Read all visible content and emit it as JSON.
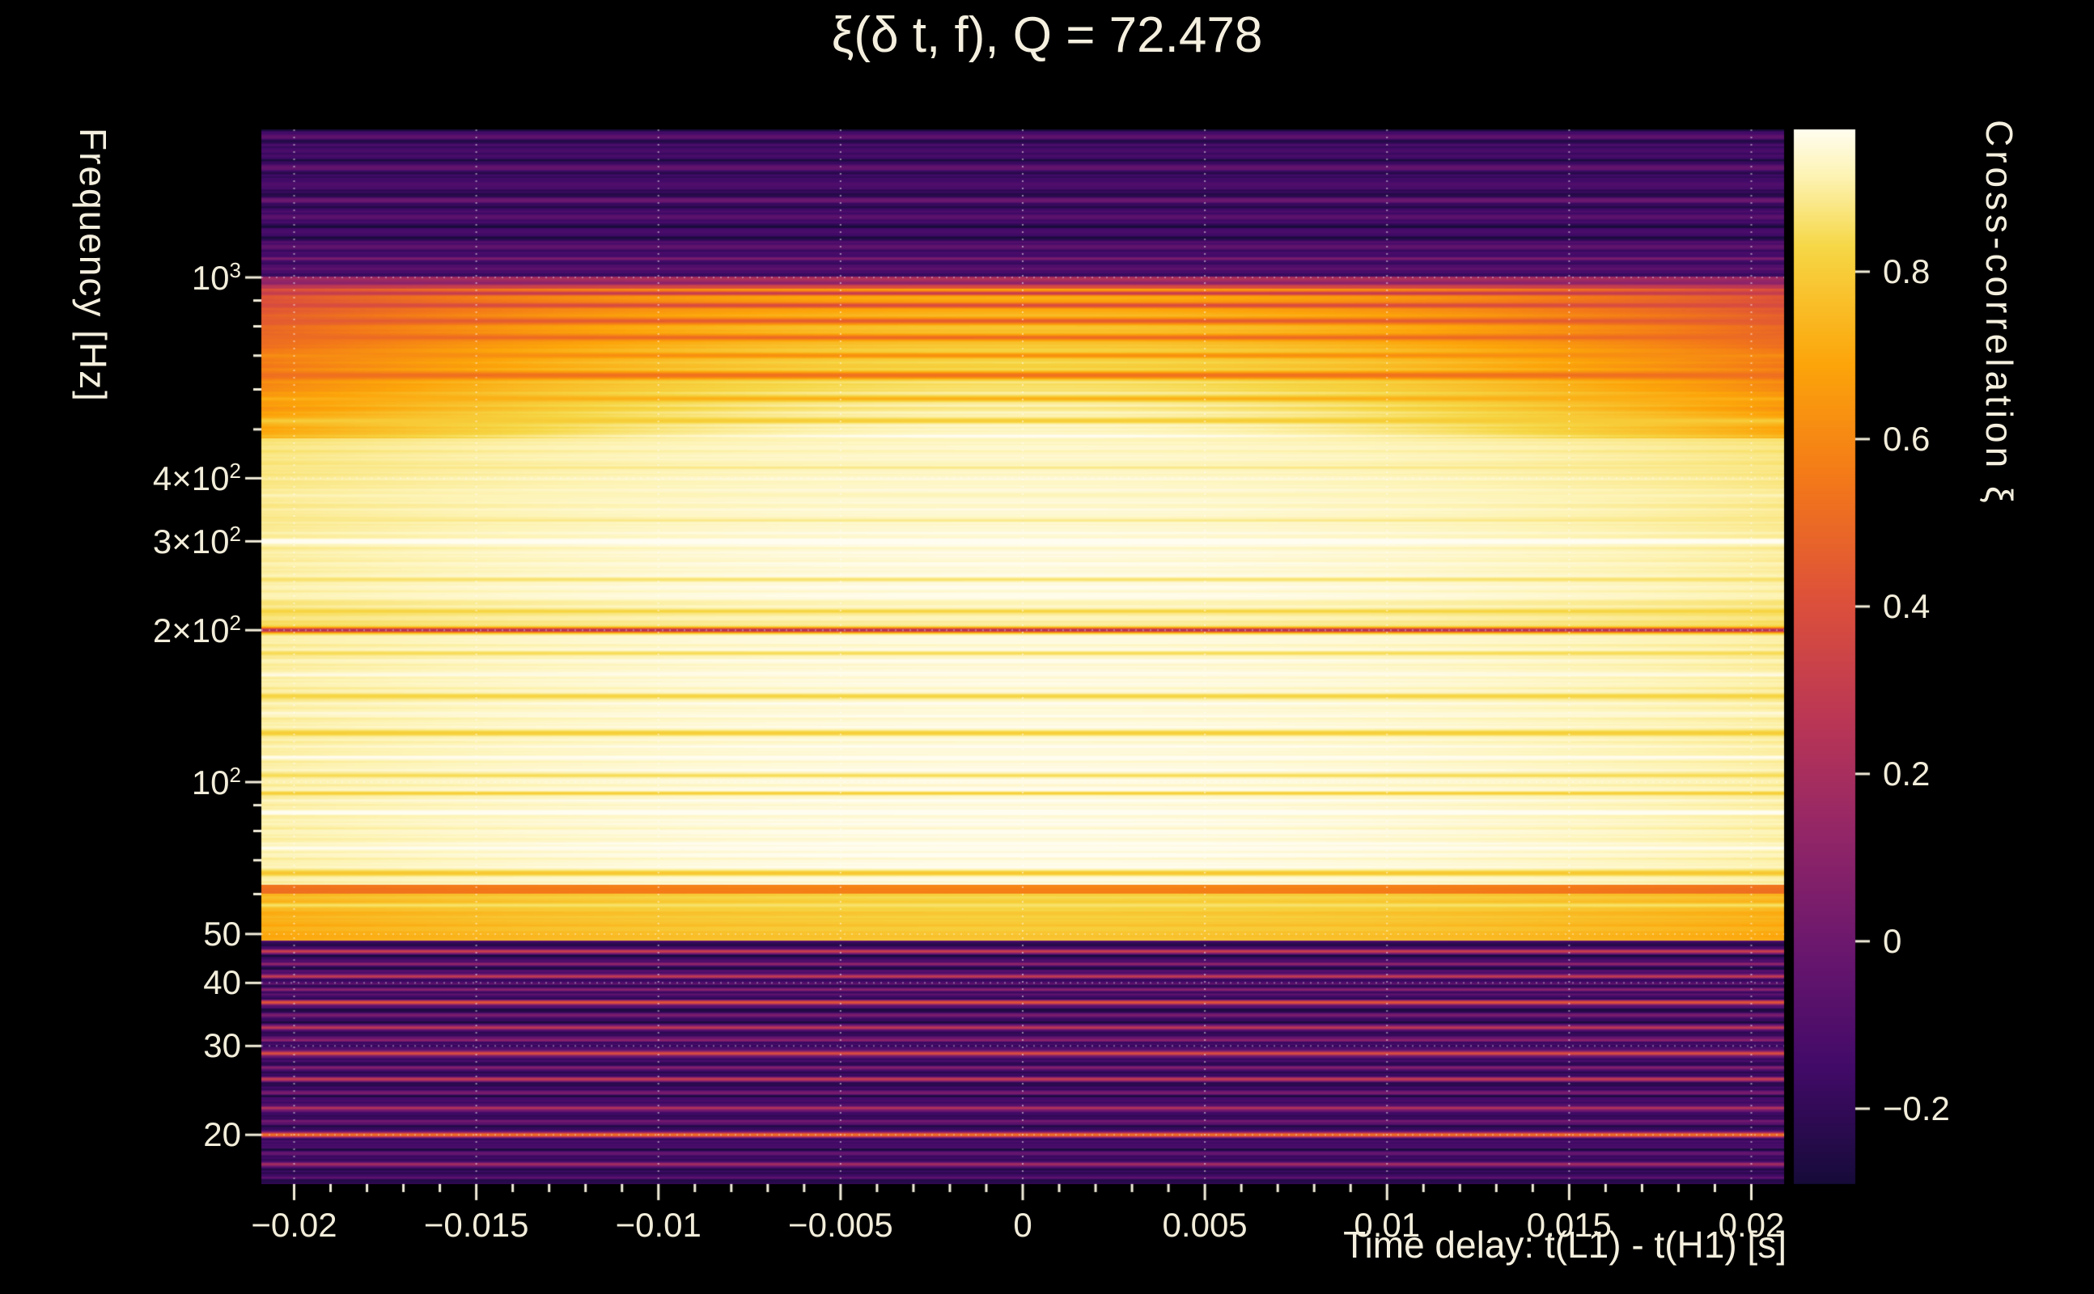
{
  "colors": {
    "background": "#000000",
    "title_text": "#f4efde",
    "tick_text": "#f2edda",
    "grid": "#ffffff"
  },
  "chart_data": {
    "type": "heatmap",
    "title": "ξ(δ t, f), Q = 72.478",
    "Q": 72.478,
    "xlabel": "Time delay: t(L1) - t(H1) [s]",
    "ylabel": "Frequency [Hz]",
    "colorbar_label": "Cross-correlation ξ",
    "x_range": [
      -0.0209,
      0.0209
    ],
    "y_scale": "log",
    "y_range_hz": [
      15.98,
      1965
    ],
    "x_ticks": [
      {
        "label": "−0.02",
        "value": -0.02
      },
      {
        "label": "−0.015",
        "value": -0.015
      },
      {
        "label": "−0.01",
        "value": -0.01
      },
      {
        "label": "−0.005",
        "value": -0.005
      },
      {
        "label": "0",
        "value": 0
      },
      {
        "label": "0.005",
        "value": 0.005
      },
      {
        "label": "0.01",
        "value": 0.01
      },
      {
        "label": "0.015",
        "value": 0.015
      },
      {
        "label": "0.02",
        "value": 0.02
      }
    ],
    "x_minor_step": 0.001,
    "y_ticks": [
      {
        "base": "10",
        "exp": "3",
        "value": 1000
      },
      {
        "base": "4×10",
        "exp": "2",
        "value": 400
      },
      {
        "base": "3×10",
        "exp": "2",
        "value": 300
      },
      {
        "base": "2×10",
        "exp": "2",
        "value": 200
      },
      {
        "base": "10",
        "exp": "2",
        "value": 100
      },
      {
        "base": "50",
        "exp": "",
        "value": 50
      },
      {
        "base": "40",
        "exp": "",
        "value": 40
      },
      {
        "base": "30",
        "exp": "",
        "value": 30
      },
      {
        "base": "20",
        "exp": "",
        "value": 20
      }
    ],
    "y_minor_ticks": [
      60,
      70,
      80,
      90,
      500,
      600,
      700,
      800,
      900
    ],
    "colorbar": {
      "vmin": -0.29,
      "vmax": 0.97,
      "ticks": [
        {
          "label": "0.8",
          "value": 0.8
        },
        {
          "label": "0.6",
          "value": 0.6
        },
        {
          "label": "0.4",
          "value": 0.4
        },
        {
          "label": "0.2",
          "value": 0.2
        },
        {
          "label": "0",
          "value": 0
        },
        {
          "label": "−0.2",
          "value": -0.2
        }
      ]
    },
    "colormap": {
      "range": [
        0.1,
        1.0
      ],
      "anchors": [
        [
          0.0,
          "#000004"
        ],
        [
          0.1,
          "#160b39"
        ],
        [
          0.2,
          "#420a68"
        ],
        [
          0.3,
          "#6a176e"
        ],
        [
          0.4,
          "#932667"
        ],
        [
          0.5,
          "#bc3754"
        ],
        [
          0.6,
          "#dd513a"
        ],
        [
          0.7,
          "#f37819"
        ],
        [
          0.8,
          "#fca50a"
        ],
        [
          0.9,
          "#f6d746"
        ],
        [
          0.96,
          "#fdf3b3"
        ],
        [
          1.0,
          "#fffdf0"
        ]
      ]
    },
    "time_profile": {
      "shape": "quadratic",
      "t_half_width_s": 0.0209
    },
    "bands": [
      {
        "f_lo": 16,
        "f_hi": 48.5,
        "edge_lo": -0.17,
        "edge_hi": -0.17,
        "center_lo": -0.17,
        "center_hi": -0.17,
        "noise": 0.14
      },
      {
        "f_lo": 48.5,
        "f_hi": 60,
        "edge_lo": 0.7,
        "edge_hi": 0.74,
        "center_lo": 0.78,
        "center_hi": 0.82,
        "noise": 0.03
      },
      {
        "f_lo": 60,
        "f_hi": 62.5,
        "edge_lo": 0.52,
        "edge_hi": 0.52,
        "center_lo": 0.58,
        "center_hi": 0.58,
        "noise": 0.02
      },
      {
        "f_lo": 62.5,
        "f_hi": 200,
        "edge_lo": 0.91,
        "edge_hi": 0.9,
        "center_lo": 0.96,
        "center_hi": 0.95,
        "noise": 0.025
      },
      {
        "f_lo": 200,
        "f_hi": 230,
        "edge_lo": 0.85,
        "edge_hi": 0.88,
        "center_lo": 0.9,
        "center_hi": 0.93,
        "noise": 0.02
      },
      {
        "f_lo": 230,
        "f_hi": 480,
        "edge_lo": 0.91,
        "edge_hi": 0.87,
        "center_lo": 0.96,
        "center_hi": 0.93,
        "noise": 0.02
      },
      {
        "f_lo": 480,
        "f_hi": 950,
        "edge_lo": 0.72,
        "edge_hi": 0.4,
        "center_lo": 0.95,
        "center_hi": 0.7,
        "noise": 0.035
      },
      {
        "f_lo": 950,
        "f_hi": 1005,
        "edge_lo": 0.3,
        "edge_hi": 0.13,
        "center_lo": 0.45,
        "center_hi": 0.18,
        "noise": 0.05
      },
      {
        "f_lo": 1005,
        "f_hi": 1965,
        "edge_lo": -0.2,
        "edge_hi": -0.2,
        "center_lo": -0.2,
        "center_hi": -0.2,
        "noise": 0.11
      }
    ],
    "stripes": [
      [
        17.5,
        0.003,
        0.18
      ],
      [
        18.4,
        0.0025,
        -0.02
      ],
      [
        20.0,
        0.004,
        0.52
      ],
      [
        21.3,
        0.0025,
        0.02
      ],
      [
        22.6,
        0.003,
        0.25
      ],
      [
        24.2,
        0.0025,
        0.05
      ],
      [
        25.8,
        0.003,
        0.3
      ],
      [
        27.2,
        0.0025,
        0.08
      ],
      [
        29.0,
        0.0035,
        0.4
      ],
      [
        30.8,
        0.0025,
        0.12
      ],
      [
        32.6,
        0.003,
        0.28
      ],
      [
        34.5,
        0.0025,
        0.05
      ],
      [
        36.6,
        0.0035,
        0.42
      ],
      [
        38.8,
        0.0025,
        0.1
      ],
      [
        41.2,
        0.003,
        0.3
      ],
      [
        43.6,
        0.0025,
        0.12
      ],
      [
        46.2,
        0.003,
        0.32
      ],
      [
        57,
        0.003,
        0.86
      ],
      [
        66,
        0.004,
        0.78
      ],
      [
        74,
        0.003,
        0.97
      ],
      [
        87,
        0.003,
        0.99
      ],
      [
        95,
        0.0025,
        0.8
      ],
      [
        103,
        0.003,
        0.84
      ],
      [
        112,
        0.0025,
        0.97
      ],
      [
        125,
        0.004,
        0.8
      ],
      [
        137,
        0.0025,
        0.95
      ],
      [
        148,
        0.004,
        0.82
      ],
      [
        163,
        0.0025,
        0.96
      ],
      [
        180,
        0.003,
        0.84
      ],
      [
        200,
        0.0035,
        0.22
      ],
      [
        218,
        0.003,
        0.82
      ],
      [
        252,
        0.003,
        0.86
      ],
      [
        300,
        0.0035,
        1.0
      ],
      [
        330,
        0.0025,
        0.88
      ],
      [
        370,
        0.003,
        0.92
      ],
      [
        420,
        0.0025,
        0.88
      ],
      [
        520,
        0.004,
        0.8
      ],
      [
        575,
        0.0035,
        0.72
      ],
      [
        640,
        0.005,
        0.52
      ],
      [
        700,
        0.0035,
        0.62
      ],
      [
        760,
        0.004,
        0.5
      ],
      [
        820,
        0.004,
        0.45
      ],
      [
        880,
        0.004,
        0.38
      ],
      [
        930,
        0.003,
        0.3
      ],
      [
        975,
        0.003,
        0.1
      ],
      [
        1040,
        0.004,
        -0.05
      ],
      [
        1090,
        0.003,
        0.05
      ],
      [
        1150,
        0.005,
        -0.04
      ],
      [
        1230,
        0.004,
        -0.12
      ],
      [
        1320,
        0.005,
        -0.06
      ],
      [
        1420,
        0.004,
        0.0
      ],
      [
        1530,
        0.005,
        -0.1
      ],
      [
        1650,
        0.005,
        -0.03
      ],
      [
        1780,
        0.005,
        -0.12
      ],
      [
        1900,
        0.004,
        -0.05
      ]
    ]
  }
}
